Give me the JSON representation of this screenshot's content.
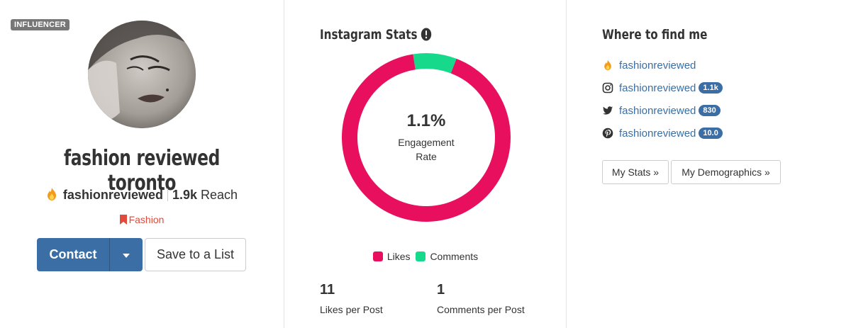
{
  "profile": {
    "badge": "INFLUENCER",
    "name": "fashion reviewed toronto",
    "handle": "fashionreviewed",
    "reach_value": "1.9k",
    "reach_label": "Reach",
    "category": "Fashion",
    "contact_label": "Contact",
    "save_label": "Save to a List"
  },
  "instagram_stats": {
    "title": "Instagram Stats",
    "engagement_rate": "1.1%",
    "engagement_label": "Engagement Rate",
    "legend": [
      {
        "label": "Likes",
        "color": "#e8105e"
      },
      {
        "label": "Comments",
        "color": "#17d98c"
      }
    ],
    "likes_per_post": "11",
    "likes_per_post_label": "Likes per Post",
    "comments_per_post": "1",
    "comments_per_post_label": "Comments per Post"
  },
  "chart_data": {
    "type": "pie",
    "categories": [
      "Likes",
      "Comments"
    ],
    "values": [
      11,
      1
    ],
    "colors": [
      "#e8105e",
      "#17d98c"
    ]
  },
  "where_to_find": {
    "title": "Where to find me",
    "items": [
      {
        "icon": "fire-icon",
        "handle": "fashionreviewed",
        "count": ""
      },
      {
        "icon": "instagram-icon",
        "handle": "fashionreviewed",
        "count": "1.1k"
      },
      {
        "icon": "twitter-icon",
        "handle": "fashionreviewed",
        "count": "830"
      },
      {
        "icon": "pinterest-icon",
        "handle": "fashionreviewed",
        "count": "10.0"
      }
    ],
    "my_stats_label": "My Stats »",
    "my_demographics_label": "My Demographics »"
  },
  "colors": {
    "accent": "#3a6ea5",
    "category": "#e24a3b",
    "likes": "#e8105e",
    "comments": "#17d98c"
  }
}
